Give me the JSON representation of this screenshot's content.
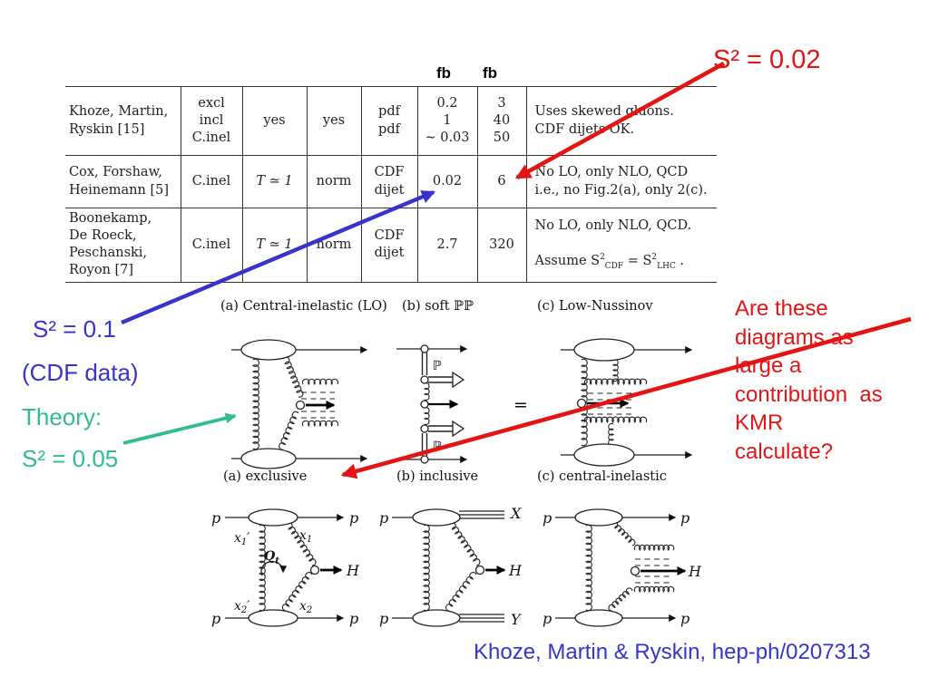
{
  "colors": {
    "red": "#e41414",
    "blue": "#3733cb",
    "green": "#2ebd8e"
  },
  "table": {
    "units": [
      "fb",
      "fb"
    ],
    "rows": [
      {
        "authors": [
          "Khoze, Martin,",
          "Ryskin [15]"
        ],
        "mode": [
          "excl",
          "incl",
          "C.inel"
        ],
        "surv": "yes",
        "norm": "yes",
        "glu": [
          "pdf",
          "pdf"
        ],
        "fb1": [
          "0.2",
          "1",
          "∼ 0.03"
        ],
        "fb2": [
          "3",
          "40",
          "50"
        ],
        "note": [
          "Uses skewed gluons.",
          "CDF dijets OK."
        ]
      },
      {
        "authors": [
          "Cox, Forshaw,",
          "Heinemann [5]"
        ],
        "mode": "C.inel",
        "surv": "T ≃ 1",
        "norm": "norm",
        "glu": [
          "CDF",
          "dijet"
        ],
        "fb1": "0.02",
        "fb2": "6",
        "note": [
          "No LO, only NLO, QCD",
          "i.e., no Fig.2(a), only 2(c)."
        ]
      },
      {
        "authors": [
          "Boonekamp,",
          "De Roeck,",
          "Peschanski,",
          "Royon [7]"
        ],
        "mode": "C.inel",
        "surv": "T ≃ 1",
        "norm": "norm",
        "glu": [
          "CDF",
          "dijet"
        ],
        "fb1": "2.7",
        "fb2": "320",
        "note_line1": "No LO, only NLO, QCD.",
        "note_math": {
          "p1": "Assume S",
          "sup1": "2",
          "sub1": "CDF",
          "p2": " = S",
          "sup2": "2",
          "sub2": "LHC",
          "p3": " ."
        }
      }
    ]
  },
  "annotations": {
    "s2_002": "S² = 0.02",
    "s2_01": "S² = 0.1",
    "cdf_data": "(CDF data)",
    "theory": "Theory:",
    "s2_005": "S² = 0.05",
    "question": "Are these\ndiagrams as\nlarge a\ncontribution  as\nKMR\ncalculate?",
    "citation": "Khoze, Martin & Ryskin, hep-ph/0207313"
  },
  "figures": {
    "captions_mid": [
      "(a) Central-inelastic (LO)",
      "(b) soft  ℙℙ",
      "(c) Low-Nussinov"
    ],
    "captions_bottom": [
      "(a) exclusive",
      "(b) inclusive",
      "(c) central-inelastic"
    ],
    "labels": {
      "pom": "ℙ",
      "eq": "=",
      "p": "p",
      "H": "H",
      "X": "X",
      "Y": "Y",
      "x": "x",
      "one": "1",
      "two": "2",
      "prime": "′",
      "q": "Q",
      "t": "t"
    }
  }
}
